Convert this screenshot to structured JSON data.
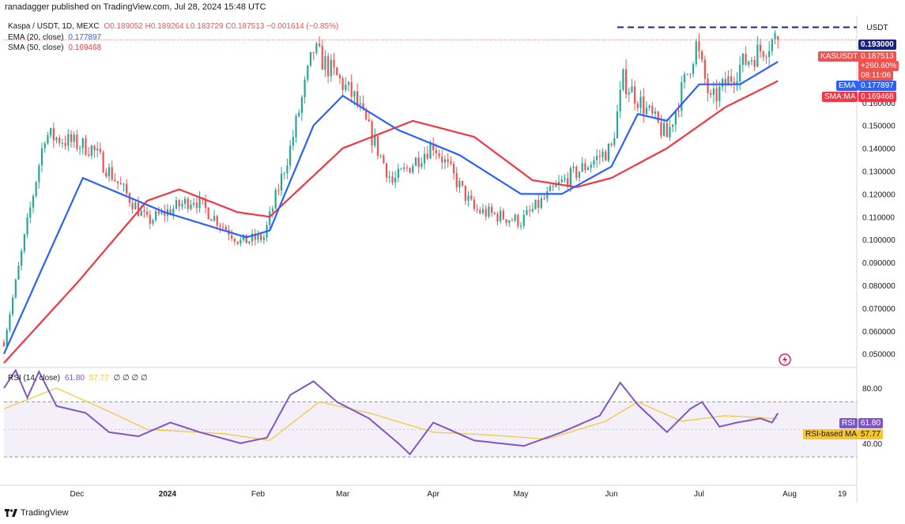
{
  "header": {
    "attribution": "ranadagger published on TradingView.com, Jul 28, 2024 15:48 UTC"
  },
  "legend": {
    "symbol": "Kaspa / USDT, 1D, MEXC",
    "ohlc": "O0.189052 H0.189264 L0.183729 C0.187513 −0.001614 (−0.85%)",
    "ema_label": "EMA (20, close)",
    "ema_value": "0.177897",
    "sma_label": "SMA (50, close)",
    "sma_value": "0.169468",
    "rsi_label": "RSI (14, close)",
    "rsi_value": "61.80",
    "rsi_ma_value": "57.77",
    "rsi_extra": "∅ ∅ ∅ ∅"
  },
  "price_axis": {
    "currency": "USDT",
    "ticks": [
      "0.160000",
      "0.150000",
      "0.140000",
      "0.130000",
      "0.120000",
      "0.110000",
      "0.100000",
      "0.090000",
      "0.080000",
      "0.070000",
      "0.060000",
      "0.050000"
    ]
  },
  "rsi_axis": {
    "ticks": [
      "80.00",
      "40.00"
    ]
  },
  "time_axis": {
    "ticks": [
      "Dec",
      "2024",
      "Feb",
      "Mar",
      "Apr",
      "May",
      "Jun",
      "Jul",
      "Aug",
      "19"
    ]
  },
  "labels": {
    "resistance": "0.193000",
    "symbol_tag": "KASUSDT",
    "last_price": "0.187513",
    "change_pct": "+260.60%",
    "countdown": "08:11:06",
    "ema_tag": "EMA",
    "ema_value": "0.177897",
    "sma_tag": "SMA:MA",
    "sma_value": "0.169468",
    "rsi_tag": "RSI",
    "rsi_value": "61.80",
    "rsi_ma_tag": "RSI-based MA",
    "rsi_ma_value": "57.77"
  },
  "brand": "TradingView",
  "colors": {
    "up": "#26a69a",
    "down": "#ef5350",
    "ema": "#2962ff",
    "sma": "#f23645",
    "rsi": "#7e57c2",
    "rsi_ma": "#f7c530",
    "resistance": "#1a237e"
  },
  "chart_data": [
    {
      "type": "candlestick",
      "title": "Kaspa / USDT, 1D, MEXC",
      "ylim": [
        0.044,
        0.198
      ],
      "x_range": [
        "2023-11-06",
        "2024-08-24"
      ],
      "approximate": true,
      "key_points": [
        {
          "date": "2023-11-06",
          "close": 0.055
        },
        {
          "date": "2023-11-20",
          "close": 0.146
        },
        {
          "date": "2023-12-06",
          "close": 0.14
        },
        {
          "date": "2023-12-25",
          "close": 0.108
        },
        {
          "date": "2024-01-10",
          "close": 0.118
        },
        {
          "date": "2024-01-26",
          "close": 0.099
        },
        {
          "date": "2024-02-03",
          "close": 0.101
        },
        {
          "date": "2024-02-12",
          "close": 0.14
        },
        {
          "date": "2024-02-20",
          "close": 0.183
        },
        {
          "date": "2024-03-05",
          "close": 0.162
        },
        {
          "date": "2024-03-18",
          "close": 0.125
        },
        {
          "date": "2024-04-01",
          "close": 0.142
        },
        {
          "date": "2024-04-15",
          "close": 0.113
        },
        {
          "date": "2024-05-01",
          "close": 0.108
        },
        {
          "date": "2024-05-15",
          "close": 0.125
        },
        {
          "date": "2024-06-01",
          "close": 0.14
        },
        {
          "date": "2024-06-05",
          "close": 0.17
        },
        {
          "date": "2024-06-20",
          "close": 0.145
        },
        {
          "date": "2024-06-30",
          "close": 0.185
        },
        {
          "date": "2024-07-05",
          "close": 0.16
        },
        {
          "date": "2024-07-15",
          "close": 0.176
        },
        {
          "date": "2024-07-27",
          "close": 0.188
        }
      ],
      "last": {
        "date": "2024-07-28",
        "open": 0.189052,
        "high": 0.189264,
        "low": 0.183729,
        "close": 0.187513
      },
      "series": [
        {
          "name": "EMA (20, close)",
          "last": 0.177897,
          "points": [
            {
              "date": "2023-11-06",
              "value": 0.05
            },
            {
              "date": "2023-11-20",
              "value": 0.09
            },
            {
              "date": "2023-12-03",
              "value": 0.127
            },
            {
              "date": "2023-12-31",
              "value": 0.112
            },
            {
              "date": "2024-01-28",
              "value": 0.101
            },
            {
              "date": "2024-02-05",
              "value": 0.104
            },
            {
              "date": "2024-02-20",
              "value": 0.15
            },
            {
              "date": "2024-03-01",
              "value": 0.163
            },
            {
              "date": "2024-03-20",
              "value": 0.148
            },
            {
              "date": "2024-04-10",
              "value": 0.137
            },
            {
              "date": "2024-05-01",
              "value": 0.12
            },
            {
              "date": "2024-05-15",
              "value": 0.12
            },
            {
              "date": "2024-06-01",
              "value": 0.132
            },
            {
              "date": "2024-06-10",
              "value": 0.155
            },
            {
              "date": "2024-06-20",
              "value": 0.152
            },
            {
              "date": "2024-07-01",
              "value": 0.168
            },
            {
              "date": "2024-07-15",
              "value": 0.168
            },
            {
              "date": "2024-07-28",
              "value": 0.177897
            }
          ]
        },
        {
          "name": "SMA (50, close)",
          "last": 0.169468,
          "points": [
            {
              "date": "2023-11-06",
              "value": 0.046
            },
            {
              "date": "2023-12-01",
              "value": 0.081
            },
            {
              "date": "2023-12-25",
              "value": 0.117
            },
            {
              "date": "2024-01-05",
              "value": 0.122
            },
            {
              "date": "2024-01-25",
              "value": 0.112
            },
            {
              "date": "2024-02-05",
              "value": 0.11
            },
            {
              "date": "2024-03-01",
              "value": 0.14
            },
            {
              "date": "2024-03-25",
              "value": 0.152
            },
            {
              "date": "2024-04-15",
              "value": 0.145
            },
            {
              "date": "2024-05-05",
              "value": 0.126
            },
            {
              "date": "2024-05-20",
              "value": 0.123
            },
            {
              "date": "2024-06-01",
              "value": 0.127
            },
            {
              "date": "2024-06-20",
              "value": 0.14
            },
            {
              "date": "2024-07-10",
              "value": 0.158
            },
            {
              "date": "2024-07-28",
              "value": 0.169468
            }
          ]
        }
      ],
      "resistance": 0.193
    },
    {
      "type": "line",
      "title": "RSI (14, close)",
      "ylim": [
        10,
        95
      ],
      "bands": [
        30,
        70
      ],
      "approximate": true,
      "series": [
        {
          "name": "RSI",
          "last": 61.8,
          "points": [
            {
              "date": "2023-11-06",
              "value": 80
            },
            {
              "date": "2023-11-10",
              "value": 93
            },
            {
              "date": "2023-11-14",
              "value": 73
            },
            {
              "date": "2023-11-18",
              "value": 92
            },
            {
              "date": "2023-11-24",
              "value": 67
            },
            {
              "date": "2023-12-04",
              "value": 62
            },
            {
              "date": "2023-12-12",
              "value": 48
            },
            {
              "date": "2023-12-22",
              "value": 45
            },
            {
              "date": "2024-01-02",
              "value": 55
            },
            {
              "date": "2024-01-12",
              "value": 48
            },
            {
              "date": "2024-01-26",
              "value": 40
            },
            {
              "date": "2024-02-04",
              "value": 44
            },
            {
              "date": "2024-02-12",
              "value": 75
            },
            {
              "date": "2024-02-20",
              "value": 85
            },
            {
              "date": "2024-02-28",
              "value": 70
            },
            {
              "date": "2024-03-10",
              "value": 58
            },
            {
              "date": "2024-03-20",
              "value": 40
            },
            {
              "date": "2024-03-24",
              "value": 32
            },
            {
              "date": "2024-04-01",
              "value": 55
            },
            {
              "date": "2024-04-15",
              "value": 42
            },
            {
              "date": "2024-05-02",
              "value": 38
            },
            {
              "date": "2024-05-15",
              "value": 48
            },
            {
              "date": "2024-05-28",
              "value": 60
            },
            {
              "date": "2024-06-04",
              "value": 84
            },
            {
              "date": "2024-06-10",
              "value": 68
            },
            {
              "date": "2024-06-20",
              "value": 48
            },
            {
              "date": "2024-06-28",
              "value": 65
            },
            {
              "date": "2024-07-02",
              "value": 70
            },
            {
              "date": "2024-07-08",
              "value": 52
            },
            {
              "date": "2024-07-14",
              "value": 55
            },
            {
              "date": "2024-07-22",
              "value": 58
            },
            {
              "date": "2024-07-26",
              "value": 55
            },
            {
              "date": "2024-07-28",
              "value": 61.8
            }
          ]
        },
        {
          "name": "RSI-based MA",
          "last": 57.77,
          "points": [
            {
              "date": "2023-11-06",
              "value": 65
            },
            {
              "date": "2023-11-24",
              "value": 80
            },
            {
              "date": "2023-12-10",
              "value": 65
            },
            {
              "date": "2023-12-25",
              "value": 50
            },
            {
              "date": "2024-01-20",
              "value": 47
            },
            {
              "date": "2024-02-05",
              "value": 42
            },
            {
              "date": "2024-02-22",
              "value": 70
            },
            {
              "date": "2024-03-10",
              "value": 62
            },
            {
              "date": "2024-04-01",
              "value": 48
            },
            {
              "date": "2024-04-20",
              "value": 46
            },
            {
              "date": "2024-05-10",
              "value": 43
            },
            {
              "date": "2024-05-30",
              "value": 56
            },
            {
              "date": "2024-06-10",
              "value": 70
            },
            {
              "date": "2024-06-25",
              "value": 56
            },
            {
              "date": "2024-07-10",
              "value": 60
            },
            {
              "date": "2024-07-28",
              "value": 57.77
            }
          ]
        }
      ]
    }
  ]
}
